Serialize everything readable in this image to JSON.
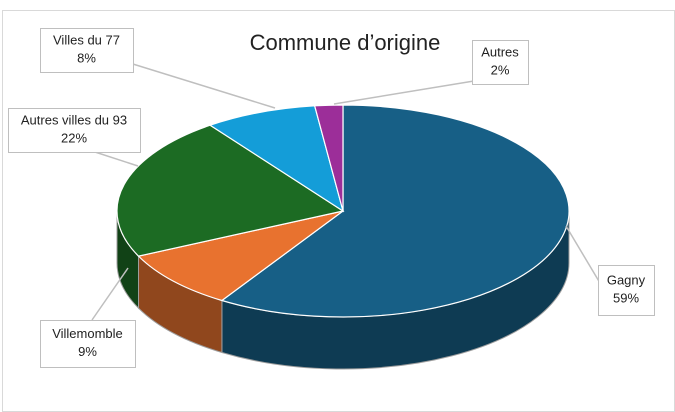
{
  "chart_data": {
    "type": "pie",
    "title": "Commune d’origine",
    "categories": [
      "Gagny",
      "Villemomble",
      "Autres villes du 93",
      "Villes du 77",
      "Autres"
    ],
    "values": [
      59,
      9,
      22,
      8,
      2
    ],
    "value_labels": [
      "59%",
      "9%",
      "22%",
      "8%",
      "2%"
    ],
    "colors": [
      "#175f86",
      "#e8722f",
      "#1c6b23",
      "#149dd8",
      "#9c2e99"
    ]
  }
}
